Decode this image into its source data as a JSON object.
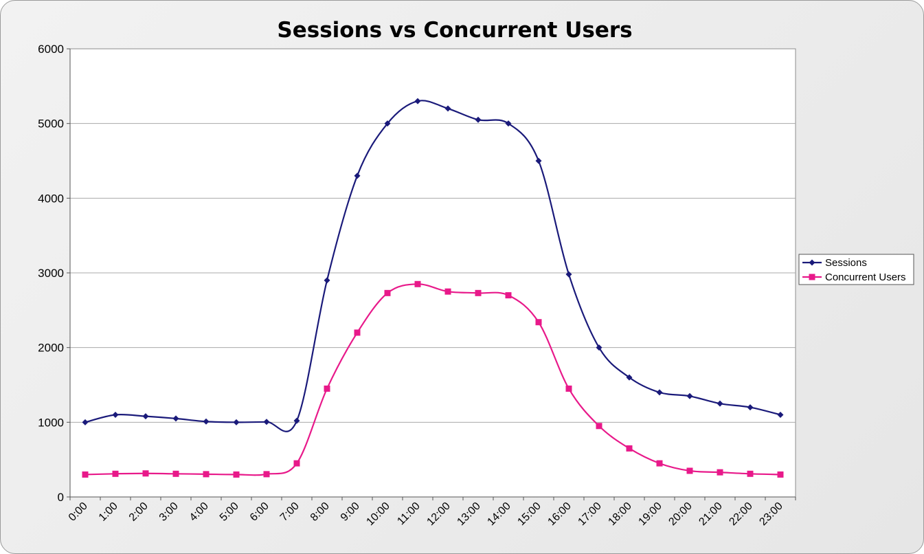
{
  "chart_data": {
    "type": "line",
    "title": "Sessions vs Concurrent Users",
    "xlabel": "",
    "ylabel": "",
    "categories": [
      "0:00",
      "1:00",
      "2:00",
      "3:00",
      "4:00",
      "5:00",
      "6:00",
      "7:00",
      "8:00",
      "9:00",
      "10:00",
      "11:00",
      "12:00",
      "13:00",
      "14:00",
      "15:00",
      "16:00",
      "17:00",
      "18:00",
      "19:00",
      "20:00",
      "21:00",
      "22:00",
      "23:00"
    ],
    "ylim": [
      0,
      6000
    ],
    "yticks": [
      0,
      1000,
      2000,
      3000,
      4000,
      5000,
      6000
    ],
    "grid": true,
    "smooth": true,
    "legend": "right",
    "series": [
      {
        "name": "Sessions",
        "color": "#1a1a7a",
        "marker": "diamond",
        "values": [
          1000,
          1100,
          1080,
          1050,
          1010,
          1000,
          1005,
          1020,
          2900,
          4300,
          5000,
          5300,
          5200,
          5050,
          5000,
          4500,
          2980,
          2000,
          1600,
          1400,
          1350,
          1250,
          1200,
          1100
        ]
      },
      {
        "name": "Concurrent Users",
        "color": "#e8198a",
        "marker": "square",
        "values": [
          300,
          310,
          315,
          310,
          305,
          300,
          305,
          450,
          1450,
          2200,
          2730,
          2850,
          2750,
          2730,
          2700,
          2340,
          1450,
          950,
          650,
          450,
          350,
          330,
          310,
          300
        ]
      }
    ]
  }
}
